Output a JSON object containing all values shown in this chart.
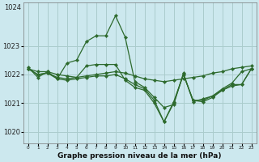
{
  "title": "Graphe pression niveau de la mer (hPa)",
  "background_color": "#cce8ee",
  "grid_color": "#aacccc",
  "line_color": "#2d6a2d",
  "marker_color": "#2d6a2d",
  "ylim": [
    1019.6,
    1024.5
  ],
  "yticks": [
    1020,
    1021,
    1022,
    1023
  ],
  "ytop_label": "1024",
  "xticks": [
    0,
    1,
    2,
    3,
    4,
    5,
    6,
    7,
    8,
    9,
    10,
    11,
    12,
    13,
    14,
    15,
    16,
    17,
    18,
    19,
    20,
    21,
    22,
    23
  ],
  "series": [
    {
      "x": [
        0,
        1,
        2,
        3,
        4,
        5,
        6,
        7,
        8,
        9,
        10,
        11,
        12,
        13,
        14,
        15,
        16,
        17,
        18,
        19,
        20,
        21,
        22,
        23
      ],
      "y": [
        1022.25,
        1021.9,
        1022.1,
        1021.85,
        1022.4,
        1022.5,
        1023.15,
        1023.35,
        1023.35,
        1024.05,
        1023.3,
        1021.75,
        1021.55,
        1021.2,
        1020.85,
        1020.95,
        1022.05,
        1021.05,
        1021.15,
        1021.25,
        1021.5,
        1021.7,
        1022.1,
        1022.2
      ]
    },
    {
      "x": [
        0,
        1,
        2,
        3,
        4,
        5,
        6,
        7,
        8,
        9,
        10,
        11,
        12,
        13,
        14,
        15,
        16,
        17,
        18,
        19,
        20,
        21,
        22,
        23
      ],
      "y": [
        1022.2,
        1022.0,
        1022.05,
        1021.9,
        1021.85,
        1021.9,
        1022.3,
        1022.35,
        1022.35,
        1022.35,
        1021.8,
        1021.55,
        1021.45,
        1021.0,
        1020.35,
        1021.05,
        1022.0,
        1021.1,
        1021.1,
        1021.25,
        1021.45,
        1021.65,
        1021.65,
        1022.2
      ]
    },
    {
      "x": [
        0,
        1,
        2,
        3,
        4,
        5,
        6,
        7,
        8,
        9,
        10,
        11,
        12,
        13,
        14,
        15,
        16,
        17,
        18,
        19,
        20,
        21,
        22,
        23
      ],
      "y": [
        1022.2,
        1022.1,
        1022.1,
        1022.0,
        1021.95,
        1021.9,
        1021.95,
        1022.0,
        1022.05,
        1022.1,
        1022.05,
        1021.95,
        1021.85,
        1021.8,
        1021.75,
        1021.8,
        1021.85,
        1021.9,
        1021.95,
        1022.05,
        1022.1,
        1022.2,
        1022.25,
        1022.3
      ]
    },
    {
      "x": [
        0,
        1,
        2,
        3,
        4,
        5,
        6,
        7,
        8,
        9,
        10,
        11,
        12,
        13,
        14,
        15,
        16,
        17,
        18,
        19,
        20,
        21,
        22,
        23
      ],
      "y": [
        1022.2,
        1022.0,
        1022.05,
        1021.85,
        1021.8,
        1021.85,
        1021.9,
        1021.95,
        1021.95,
        1022.0,
        1021.85,
        1021.65,
        1021.5,
        1021.1,
        1020.35,
        1021.0,
        1022.0,
        1021.1,
        1021.05,
        1021.2,
        1021.45,
        1021.6,
        1021.65,
        1022.2
      ]
    }
  ]
}
